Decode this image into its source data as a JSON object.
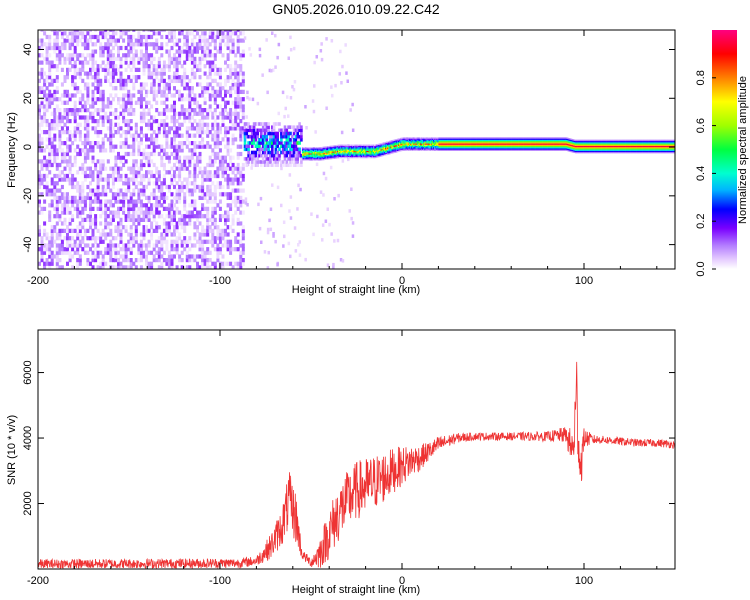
{
  "title": "GN05.2026.010.09.22.C42",
  "chart_data": [
    {
      "type": "heatmap",
      "name": "spectrogram",
      "xlabel": "Height of straight line (km)",
      "ylabel": "Frequency (Hz)",
      "xlim": [
        -200,
        150
      ],
      "ylim": [
        -50,
        48
      ],
      "xticks": [
        -200,
        -100,
        0,
        100
      ],
      "yticks": [
        -40,
        -20,
        0,
        20,
        40
      ],
      "colorbar": {
        "label": "Normalized spectral amplitude",
        "range": [
          0.0,
          1.0
        ],
        "ticks": [
          "0.0",
          "0.2",
          "0.4",
          "0.6",
          "0.8"
        ],
        "colors": [
          "#ffffff",
          "#e6ccff",
          "#b27bff",
          "#7a00ff",
          "#0000ff",
          "#00b4ff",
          "#00ffd0",
          "#00ff40",
          "#a0ff00",
          "#ffff00",
          "#ff8000",
          "#ff0000",
          "#ff0080"
        ]
      },
      "regions": [
        {
          "desc": "noise",
          "x_range": [
            -200,
            -87
          ],
          "amplitude": 0.15
        },
        {
          "desc": "signal onset",
          "x_range": [
            -87,
            -55
          ],
          "freq_spread_hz": [
            -8,
            10
          ],
          "amplitude": 0.35
        },
        {
          "desc": "signal line",
          "x_range": [
            -55,
            150
          ],
          "freq_hz": 0,
          "amplitude": 0.95
        }
      ],
      "ridge": {
        "x": [
          -85,
          -75,
          -65,
          -55,
          -45,
          -35,
          -25,
          -15,
          -5,
          0,
          10,
          30,
          60,
          90,
          95,
          120,
          150
        ],
        "freq": [
          2,
          0,
          0,
          -3,
          -3,
          -2,
          -2,
          -2,
          0,
          1,
          1,
          1,
          1,
          1,
          0,
          0,
          0
        ]
      }
    },
    {
      "type": "line",
      "name": "snr",
      "xlabel": "Height of straight line (km)",
      "ylabel": "SNR (10 * v/v)",
      "xlim": [
        -200,
        150
      ],
      "ylim": [
        0,
        7300
      ],
      "xticks": [
        -200,
        -100,
        0,
        100
      ],
      "yticks": [
        2000,
        4000,
        6000
      ],
      "color": "#ee3333",
      "series": [
        {
          "name": "SNR",
          "x": [
            -200,
            -160,
            -120,
            -90,
            -80,
            -72,
            -66,
            -62,
            -58,
            -55,
            -50,
            -45,
            -40,
            -35,
            -30,
            -25,
            -20,
            -15,
            -10,
            -5,
            0,
            5,
            10,
            15,
            20,
            25,
            30,
            40,
            60,
            80,
            90,
            94,
            96,
            98,
            100,
            105,
            110,
            120,
            130,
            140,
            150
          ],
          "y": [
            150,
            160,
            170,
            180,
            250,
            700,
            1300,
            2100,
            1500,
            450,
            200,
            500,
            1100,
            1700,
            2100,
            2400,
            2500,
            2650,
            2800,
            3000,
            3150,
            3300,
            3400,
            3600,
            3800,
            3900,
            4000,
            4050,
            4050,
            4050,
            4100,
            3600,
            5300,
            3000,
            4000,
            3950,
            3950,
            3900,
            3850,
            3850,
            3800
          ],
          "noise": [
            150,
            150,
            150,
            150,
            150,
            400,
            600,
            900,
            800,
            150,
            150,
            500,
            800,
            900,
            900,
            900,
            900,
            850,
            800,
            700,
            600,
            500,
            400,
            300,
            250,
            200,
            150,
            120,
            120,
            150,
            250,
            700,
            1400,
            900,
            300,
            150,
            120,
            120,
            120,
            120,
            120
          ]
        }
      ]
    }
  ]
}
